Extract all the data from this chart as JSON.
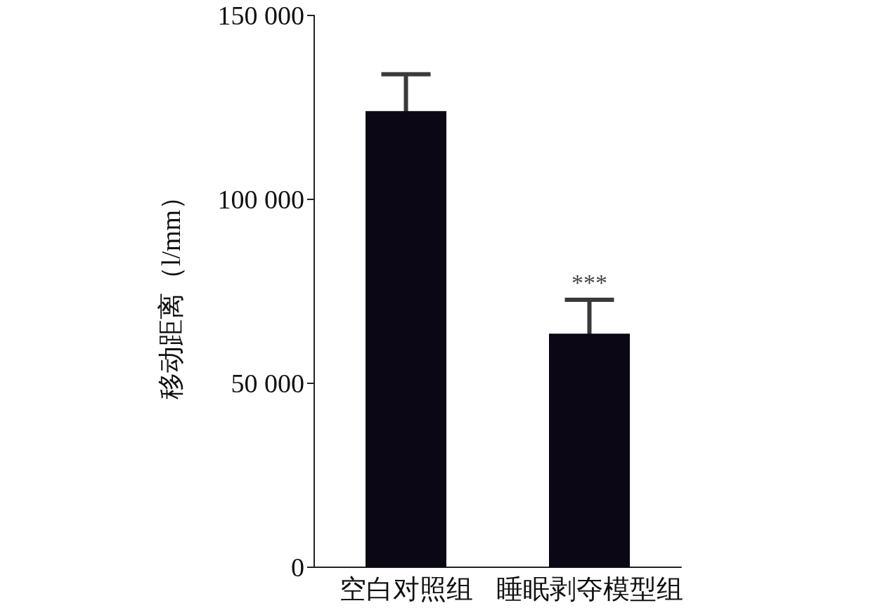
{
  "chart_data": {
    "type": "bar",
    "ylabel": "移动距离（l/mm）",
    "categories": [
      "空白对照组",
      "睡眠剥夺模型组"
    ],
    "values": [
      124000,
      63500
    ],
    "color": "#0b0714",
    "errors": [
      10000,
      9200
    ],
    "ylim": [
      0,
      150000
    ],
    "yticks": [
      {
        "value": 0,
        "label": "0"
      },
      {
        "value": 50000,
        "label": "50 000"
      },
      {
        "value": 100000,
        "label": "100 000"
      },
      {
        "value": 150000,
        "label": "150 000"
      }
    ],
    "annotations": [
      "***"
    ],
    "grid": false
  }
}
